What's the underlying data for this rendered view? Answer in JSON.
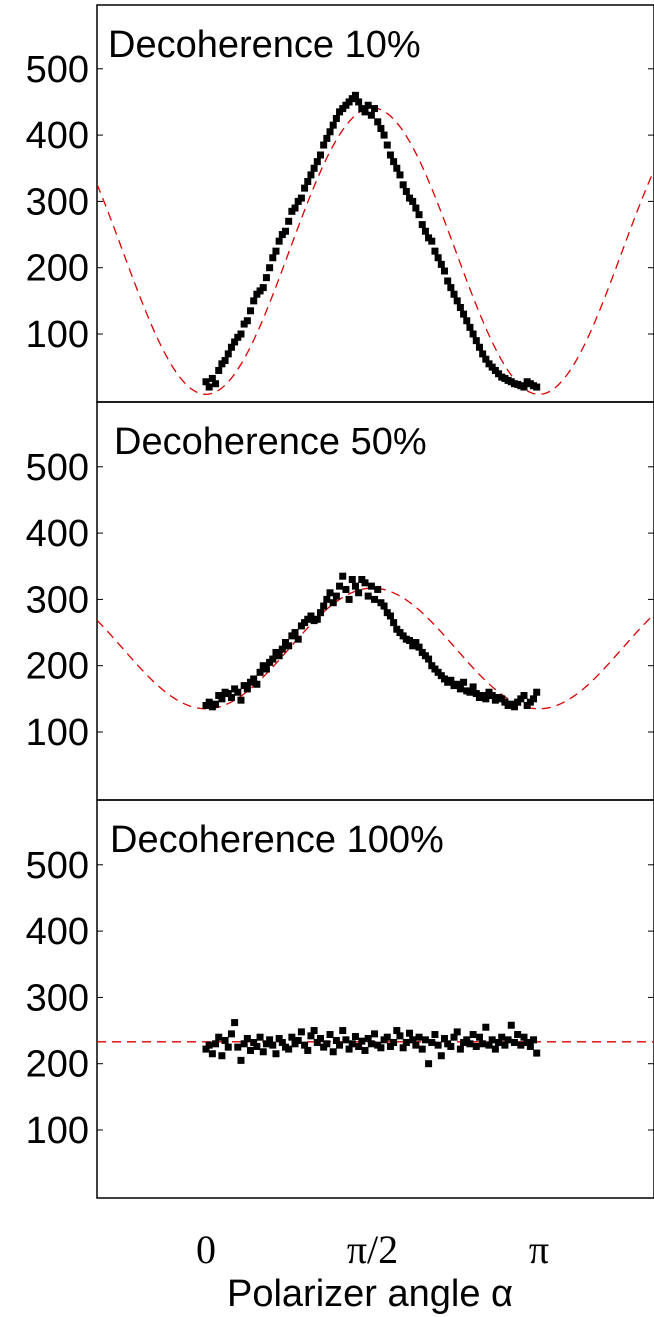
{
  "chart_data": [
    {
      "type": "scatter",
      "title": "Decoherence 10%",
      "xlabel": "",
      "ylabel": "",
      "xlim": [
        -1.676,
        3.341
      ],
      "ylim": [
        5,
        600
      ],
      "yticks": [
        100,
        200,
        300,
        400,
        500
      ],
      "series": [
        {
          "kind": "points",
          "x": [
            0.0,
            0.03,
            0.06,
            0.09,
            0.12,
            0.15,
            0.18,
            0.21,
            0.24,
            0.27,
            0.3,
            0.33,
            0.36,
            0.39,
            0.42,
            0.45,
            0.48,
            0.51,
            0.54,
            0.57,
            0.6,
            0.63,
            0.66,
            0.69,
            0.72,
            0.75,
            0.78,
            0.81,
            0.84,
            0.87,
            0.9,
            0.93,
            0.96,
            0.99,
            1.02,
            1.05,
            1.08,
            1.11,
            1.14,
            1.17,
            1.2,
            1.23,
            1.26,
            1.29,
            1.32,
            1.35,
            1.38,
            1.41,
            1.44,
            1.47,
            1.5,
            1.53,
            1.56,
            1.59,
            1.62,
            1.65,
            1.68,
            1.71,
            1.74,
            1.77,
            1.8,
            1.83,
            1.86,
            1.89,
            1.92,
            1.95,
            1.98,
            2.01,
            2.04,
            2.07,
            2.1,
            2.13,
            2.16,
            2.19,
            2.22,
            2.25,
            2.28,
            2.31,
            2.34,
            2.37,
            2.4,
            2.43,
            2.46,
            2.49,
            2.52,
            2.55,
            2.58,
            2.61,
            2.64,
            2.67,
            2.7,
            2.73,
            2.76,
            2.79,
            2.82,
            2.85,
            2.88,
            2.91,
            2.94,
            2.97,
            3.0,
            3.03,
            3.06,
            3.09,
            3.12
          ],
          "y": [
            28,
            20,
            33,
            25,
            45,
            55,
            60,
            70,
            80,
            88,
            95,
            100,
            115,
            120,
            135,
            150,
            160,
            165,
            170,
            185,
            200,
            215,
            225,
            240,
            250,
            255,
            270,
            285,
            290,
            300,
            305,
            320,
            330,
            340,
            350,
            360,
            370,
            385,
            395,
            405,
            415,
            425,
            435,
            440,
            445,
            450,
            455,
            460,
            450,
            440,
            435,
            445,
            430,
            440,
            420,
            410,
            400,
            385,
            370,
            360,
            350,
            340,
            325,
            315,
            305,
            300,
            290,
            280,
            265,
            255,
            245,
            240,
            225,
            215,
            205,
            195,
            180,
            170,
            160,
            150,
            140,
            130,
            120,
            110,
            100,
            90,
            80,
            70,
            62,
            55,
            50,
            45,
            40,
            35,
            33,
            30,
            28,
            25,
            24,
            22,
            20,
            28,
            25,
            22,
            20
          ]
        },
        {
          "kind": "fit",
          "style": "dashed",
          "color": "#dd0000",
          "baseline": 225,
          "amplitude": -216
        }
      ]
    },
    {
      "type": "scatter",
      "title": "Decoherence 50%",
      "xlabel": "",
      "ylabel": "",
      "xlim": [
        -1.676,
        3.341
      ],
      "ylim": [
        5,
        600
      ],
      "yticks": [
        100,
        200,
        300,
        400,
        500
      ],
      "series": [
        {
          "kind": "points",
          "x": [
            0.0,
            0.03,
            0.06,
            0.09,
            0.12,
            0.15,
            0.18,
            0.21,
            0.24,
            0.27,
            0.3,
            0.33,
            0.36,
            0.39,
            0.42,
            0.45,
            0.48,
            0.51,
            0.54,
            0.57,
            0.6,
            0.63,
            0.66,
            0.69,
            0.72,
            0.75,
            0.78,
            0.81,
            0.84,
            0.87,
            0.9,
            0.93,
            0.96,
            0.99,
            1.02,
            1.05,
            1.08,
            1.11,
            1.14,
            1.17,
            1.2,
            1.23,
            1.26,
            1.29,
            1.32,
            1.35,
            1.38,
            1.41,
            1.44,
            1.47,
            1.5,
            1.53,
            1.56,
            1.59,
            1.62,
            1.65,
            1.68,
            1.71,
            1.74,
            1.77,
            1.8,
            1.83,
            1.86,
            1.89,
            1.92,
            1.95,
            1.98,
            2.01,
            2.04,
            2.07,
            2.1,
            2.13,
            2.16,
            2.19,
            2.22,
            2.25,
            2.28,
            2.31,
            2.34,
            2.37,
            2.4,
            2.43,
            2.46,
            2.49,
            2.52,
            2.55,
            2.58,
            2.61,
            2.64,
            2.67,
            2.7,
            2.73,
            2.76,
            2.79,
            2.82,
            2.85,
            2.88,
            2.91,
            2.94,
            2.97,
            3.0,
            3.03,
            3.06,
            3.09,
            3.12
          ],
          "y": [
            140,
            145,
            138,
            142,
            155,
            150,
            160,
            158,
            152,
            165,
            160,
            148,
            170,
            165,
            175,
            180,
            172,
            190,
            200,
            195,
            205,
            210,
            220,
            215,
            225,
            235,
            230,
            245,
            250,
            240,
            260,
            265,
            270,
            275,
            268,
            270,
            280,
            290,
            300,
            310,
            295,
            305,
            320,
            335,
            315,
            300,
            330,
            320,
            310,
            330,
            325,
            305,
            320,
            300,
            315,
            295,
            290,
            280,
            275,
            265,
            255,
            250,
            245,
            240,
            238,
            230,
            235,
            228,
            220,
            215,
            210,
            200,
            195,
            190,
            185,
            180,
            175,
            178,
            170,
            172,
            165,
            175,
            162,
            160,
            168,
            158,
            152,
            155,
            150,
            160,
            155,
            148,
            152,
            150,
            145,
            140,
            142,
            138,
            145,
            150,
            155,
            140,
            145,
            150,
            160
          ]
        },
        {
          "kind": "fit",
          "style": "dashed",
          "color": "#dd0000",
          "baseline": 226,
          "amplitude": -91
        }
      ]
    },
    {
      "type": "scatter",
      "title": "Decoherence 100%",
      "xlabel": "Polarizer angle α",
      "ylabel": "",
      "xlim": [
        -1.676,
        3.341
      ],
      "ylim": [
        5,
        600
      ],
      "yticks": [
        100,
        200,
        300,
        400,
        500
      ],
      "xticks": [
        0,
        1.5708,
        3.1416
      ],
      "xticklabels": [
        "0",
        "π/2",
        "π"
      ],
      "series": [
        {
          "kind": "points",
          "x": [
            0.0,
            0.03,
            0.06,
            0.09,
            0.12,
            0.15,
            0.18,
            0.21,
            0.24,
            0.27,
            0.3,
            0.33,
            0.36,
            0.39,
            0.42,
            0.45,
            0.48,
            0.51,
            0.54,
            0.57,
            0.6,
            0.63,
            0.66,
            0.69,
            0.72,
            0.75,
            0.78,
            0.81,
            0.84,
            0.87,
            0.9,
            0.93,
            0.96,
            0.99,
            1.02,
            1.05,
            1.08,
            1.11,
            1.14,
            1.17,
            1.2,
            1.23,
            1.26,
            1.29,
            1.32,
            1.35,
            1.38,
            1.41,
            1.44,
            1.47,
            1.5,
            1.53,
            1.56,
            1.59,
            1.62,
            1.65,
            1.68,
            1.71,
            1.74,
            1.77,
            1.8,
            1.83,
            1.86,
            1.89,
            1.92,
            1.95,
            1.98,
            2.01,
            2.04,
            2.07,
            2.1,
            2.13,
            2.16,
            2.19,
            2.22,
            2.25,
            2.28,
            2.31,
            2.34,
            2.37,
            2.4,
            2.43,
            2.46,
            2.49,
            2.52,
            2.55,
            2.58,
            2.61,
            2.64,
            2.67,
            2.7,
            2.73,
            2.76,
            2.79,
            2.82,
            2.85,
            2.88,
            2.91,
            2.94,
            2.97,
            3.0,
            3.03,
            3.06,
            3.09,
            3.12
          ],
          "y": [
            222,
            228,
            215,
            230,
            240,
            212,
            235,
            225,
            245,
            262,
            225,
            205,
            230,
            238,
            220,
            232,
            226,
            240,
            218,
            230,
            236,
            228,
            215,
            238,
            232,
            225,
            222,
            240,
            230,
            235,
            248,
            228,
            220,
            242,
            250,
            232,
            238,
            225,
            230,
            244,
            218,
            235,
            228,
            250,
            236,
            222,
            230,
            241,
            226,
            234,
            220,
            238,
            230,
            245,
            228,
            224,
            236,
            240,
            226,
            232,
            250,
            242,
            224,
            232,
            246,
            236,
            228,
            240,
            222,
            236,
            200,
            232,
            244,
            228,
            212,
            238,
            230,
            226,
            240,
            248,
            222,
            232,
            236,
            230,
            244,
            226,
            240,
            230,
            255,
            228,
            236,
            222,
            232,
            240,
            228,
            236,
            258,
            232,
            244,
            228,
            240,
            232,
            226,
            236,
            216
          ]
        },
        {
          "kind": "fit",
          "style": "dashed",
          "color": "#dd0000",
          "baseline": 233,
          "amplitude": 0
        }
      ]
    }
  ]
}
